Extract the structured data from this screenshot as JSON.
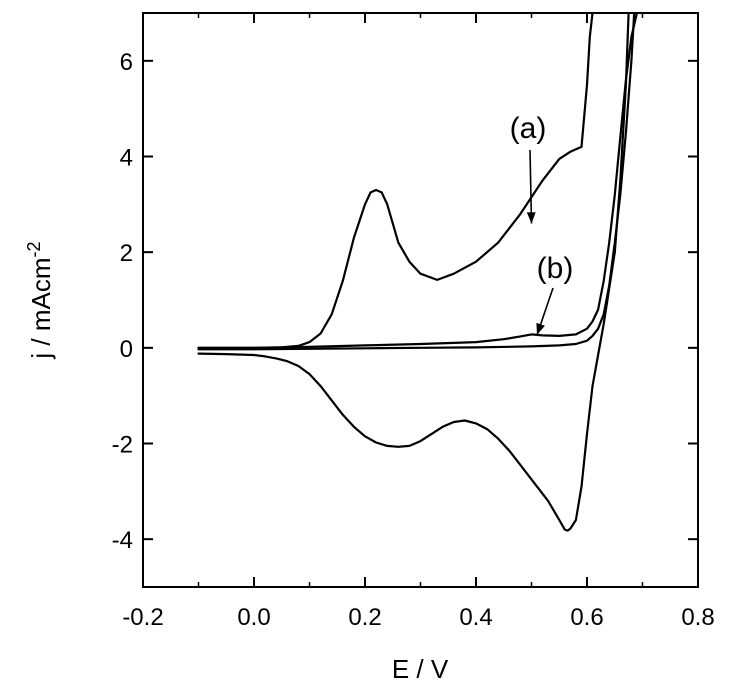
{
  "chart_data": {
    "type": "line",
    "title": "",
    "xlabel": "E / V",
    "ylabel": "j / mAcm",
    "ylabel_sup": "-2",
    "xlim": [
      -0.2,
      0.8
    ],
    "ylim": [
      -5,
      7
    ],
    "xticks": [
      -0.2,
      0.0,
      0.2,
      0.4,
      0.6,
      0.8
    ],
    "yticks": [
      -4,
      -2,
      0,
      2,
      4,
      6
    ],
    "xtick_labels": [
      "-0.2",
      "0.0",
      "0.2",
      "0.4",
      "0.6",
      "0.8"
    ],
    "ytick_labels": [
      "-4",
      "-2",
      "0",
      "2",
      "4",
      "6"
    ],
    "grid": false,
    "annotations": [
      {
        "text": "(a)",
        "target": [
          0.5,
          2.6
        ]
      },
      {
        "text": "(b)",
        "target": [
          0.51,
          0.27
        ]
      }
    ],
    "series": [
      {
        "id": "a-forward",
        "x": [
          -0.1,
          0.0,
          0.05,
          0.08,
          0.1,
          0.12,
          0.14,
          0.16,
          0.18,
          0.2,
          0.21,
          0.22,
          0.23,
          0.24,
          0.25,
          0.26,
          0.28,
          0.3,
          0.33,
          0.36,
          0.4,
          0.44,
          0.48,
          0.52,
          0.55,
          0.57,
          0.58,
          0.59,
          0.6,
          0.605,
          0.61
        ],
        "y": [
          0.0,
          0.0,
          0.01,
          0.04,
          0.12,
          0.3,
          0.7,
          1.4,
          2.3,
          3.0,
          3.25,
          3.3,
          3.25,
          3.0,
          2.6,
          2.2,
          1.8,
          1.55,
          1.42,
          1.55,
          1.8,
          2.2,
          2.8,
          3.5,
          3.95,
          4.1,
          4.15,
          4.2,
          5.5,
          6.5,
          7.0
        ]
      },
      {
        "id": "a-reverse",
        "x": [
          0.675,
          0.67,
          0.66,
          0.65,
          0.63,
          0.61,
          0.6,
          0.59,
          0.58,
          0.57,
          0.565,
          0.56,
          0.55,
          0.53,
          0.5,
          0.48,
          0.46,
          0.44,
          0.42,
          0.4,
          0.38,
          0.36,
          0.34,
          0.32,
          0.3,
          0.28,
          0.26,
          0.24,
          0.22,
          0.2,
          0.18,
          0.16,
          0.14,
          0.12,
          0.1,
          0.08,
          0.06,
          0.04,
          0.02,
          0.0,
          -0.05,
          -0.1
        ],
        "y": [
          7.0,
          5.5,
          3.5,
          2.0,
          0.5,
          -0.8,
          -1.8,
          -2.9,
          -3.6,
          -3.78,
          -3.82,
          -3.8,
          -3.6,
          -3.2,
          -2.75,
          -2.45,
          -2.15,
          -1.9,
          -1.7,
          -1.58,
          -1.52,
          -1.55,
          -1.65,
          -1.8,
          -1.95,
          -2.05,
          -2.07,
          -2.05,
          -1.98,
          -1.85,
          -1.65,
          -1.4,
          -1.1,
          -0.8,
          -0.55,
          -0.38,
          -0.28,
          -0.22,
          -0.18,
          -0.15,
          -0.13,
          -0.12
        ]
      },
      {
        "id": "b-forward",
        "x": [
          -0.1,
          0.0,
          0.1,
          0.2,
          0.3,
          0.4,
          0.45,
          0.48,
          0.5,
          0.52,
          0.55,
          0.58,
          0.6,
          0.61,
          0.62,
          0.63,
          0.64,
          0.65,
          0.66,
          0.67,
          0.68,
          0.69
        ],
        "y": [
          0.0,
          0.0,
          0.02,
          0.05,
          0.08,
          0.12,
          0.18,
          0.24,
          0.28,
          0.26,
          0.25,
          0.28,
          0.4,
          0.55,
          0.8,
          1.4,
          2.2,
          3.2,
          4.4,
          5.6,
          6.5,
          7.0
        ]
      },
      {
        "id": "b-reverse",
        "x": [
          0.685,
          0.68,
          0.67,
          0.66,
          0.65,
          0.64,
          0.63,
          0.62,
          0.61,
          0.6,
          0.58,
          0.55,
          0.5,
          0.4,
          0.3,
          0.2,
          0.1,
          0.0,
          -0.1
        ],
        "y": [
          7.0,
          6.0,
          4.5,
          3.2,
          2.2,
          1.3,
          0.7,
          0.4,
          0.25,
          0.15,
          0.08,
          0.05,
          0.03,
          0.01,
          0.0,
          -0.01,
          -0.02,
          -0.03,
          -0.03
        ]
      }
    ]
  }
}
